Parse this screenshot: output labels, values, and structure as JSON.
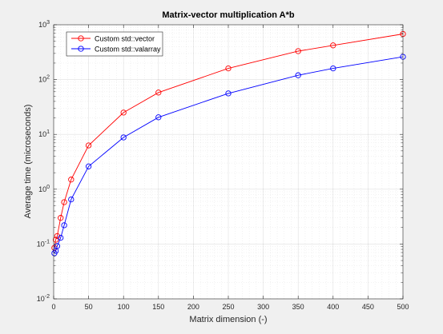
{
  "chart_data": {
    "type": "line",
    "title": "Matrix-vector multiplication A*b",
    "xlabel": "Matrix dimension (-)",
    "ylabel": "Average time (microseconds)",
    "xlim": [
      0,
      500
    ],
    "ylim": [
      0.01,
      1000
    ],
    "yscale": "log",
    "grid": true,
    "minor_grid": true,
    "legend": "top-left",
    "xticks": [
      "0",
      "50",
      "100",
      "150",
      "200",
      "250",
      "300",
      "350",
      "400",
      "450",
      "500"
    ],
    "yticks": [
      {
        "base": "10",
        "exp": "-2"
      },
      {
        "base": "10",
        "exp": "-1"
      },
      {
        "base": "10",
        "exp": "0"
      },
      {
        "base": "10",
        "exp": "1"
      },
      {
        "base": "10",
        "exp": "2"
      },
      {
        "base": "10",
        "exp": "3"
      }
    ],
    "series": [
      {
        "name": "Custom std::vector",
        "color": "#ff0000",
        "x": [
          1,
          3,
          5,
          10,
          15,
          25,
          50,
          100,
          150,
          250,
          350,
          400,
          500
        ],
        "y": [
          0.085,
          0.12,
          0.14,
          0.3,
          0.58,
          1.5,
          6.3,
          25,
          58,
          160,
          330,
          420,
          680
        ]
      },
      {
        "name": "Custom std::valarray",
        "color": "#0000ff",
        "x": [
          1,
          3,
          5,
          10,
          15,
          25,
          50,
          100,
          150,
          250,
          350,
          400,
          500
        ],
        "y": [
          0.068,
          0.075,
          0.092,
          0.13,
          0.22,
          0.65,
          2.6,
          8.8,
          20.5,
          56,
          120,
          160,
          260
        ]
      }
    ]
  }
}
